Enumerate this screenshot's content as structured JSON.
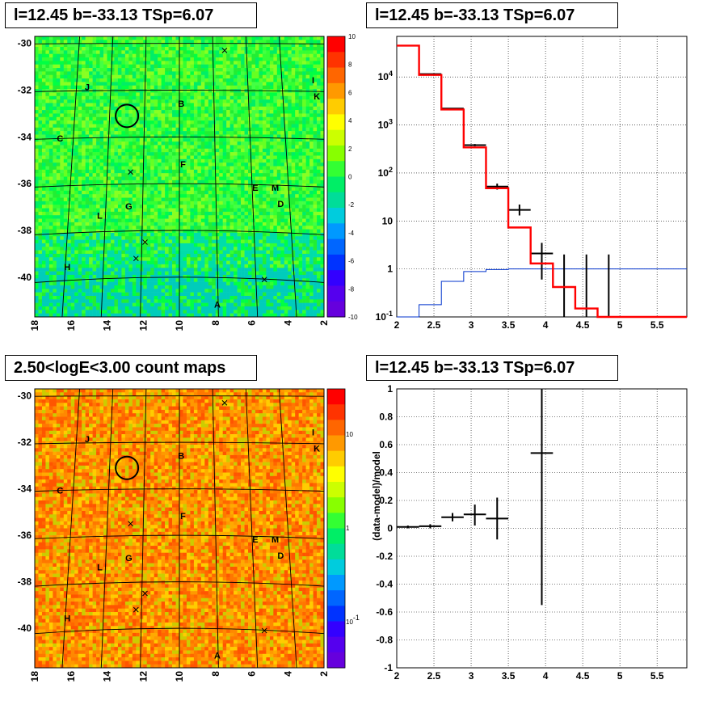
{
  "titles": {
    "map_residual": "l=12.45 b=-33.13 TSp=6.07",
    "spectrum": "l=12.45 b=-33.13 TSp=6.07",
    "count_map": "2.50<logE<3.00 count maps",
    "residual": "l=12.45 b=-33.13 TSp=6.07"
  },
  "colors": {
    "data": "#000000",
    "model": "#ff0000",
    "signal": "#0033cc",
    "grid": "#000000"
  },
  "chart_data": [
    {
      "type": "heatmap",
      "title": "l=12.45 b=-33.13 TSp=6.07",
      "x_ticks": [
        "18",
        "16",
        "14",
        "12",
        "10",
        "8",
        "6",
        "4",
        "2"
      ],
      "y_ticks": [
        "-30",
        "-32",
        "-34",
        "-36",
        "-38",
        "-40"
      ],
      "xlim": [
        18,
        2
      ],
      "ylim": [
        -41.7,
        -29.7
      ],
      "colorbar": {
        "ticks": [
          "10",
          "8",
          "6",
          "4",
          "2",
          "0",
          "-2",
          "-4",
          "-6",
          "-8",
          "-10"
        ],
        "range": [
          -10,
          10
        ]
      },
      "sources": [
        {
          "label": "J",
          "l": 15.1,
          "b": -32.0
        },
        {
          "label": "B",
          "l": 9.9,
          "b": -32.7
        },
        {
          "label": "I",
          "l": 2.6,
          "b": -31.7
        },
        {
          "label": "K",
          "l": 2.4,
          "b": -32.4
        },
        {
          "label": "C",
          "l": 16.6,
          "b": -34.2
        },
        {
          "label": "F",
          "l": 9.8,
          "b": -35.3
        },
        {
          "label": "E",
          "l": 5.8,
          "b": -36.3
        },
        {
          "label": "M",
          "l": 4.7,
          "b": -36.3
        },
        {
          "label": "D",
          "l": 4.4,
          "b": -37.0
        },
        {
          "label": "G",
          "l": 12.8,
          "b": -37.1
        },
        {
          "label": "L",
          "l": 14.4,
          "b": -37.5
        },
        {
          "label": "H",
          "l": 16.2,
          "b": -39.7
        },
        {
          "label": "A",
          "l": 7.9,
          "b": -41.3
        }
      ]
    },
    {
      "type": "line",
      "title": "l=12.45 b=-33.13 TSp=6.07",
      "x_ticks": [
        "2",
        "2.5",
        "3",
        "3.5",
        "4",
        "4.5",
        "5",
        "5.5"
      ],
      "y_ticks": [
        "10^-1",
        "1",
        "10",
        "10^2",
        "10^3",
        "10^4"
      ],
      "xlim": [
        2,
        5.9
      ],
      "ylim": [
        0.1,
        70000
      ],
      "y_scale": "log",
      "bin_edges": [
        2.0,
        2.3,
        2.6,
        2.9,
        3.2,
        3.5,
        3.8,
        4.1,
        4.4,
        4.7,
        5.0,
        5.3,
        5.6,
        5.9
      ],
      "series": [
        {
          "values": [
            45000,
            11000,
            2100,
            340,
            48,
            7.3,
            1.3,
            0.42,
            0.15,
            0.09,
            0.08,
            0.08,
            0.08
          ]
        },
        {
          "values": [
            0.1,
            0.18,
            0.55,
            0.88,
            0.97,
            1.0,
            1.0,
            1.0,
            1.0,
            1.0,
            1.0,
            1.0,
            1.0
          ]
        }
      ],
      "data_points": [
        {
          "x": 2.45,
          "y": 11500,
          "xerr": 0.15,
          "ylo": 11300,
          "yhi": 11700
        },
        {
          "x": 2.75,
          "y": 2200,
          "xerr": 0.15,
          "ylo": 2150,
          "yhi": 2250
        },
        {
          "x": 3.05,
          "y": 380,
          "xerr": 0.15,
          "ylo": 360,
          "yhi": 400
        },
        {
          "x": 3.35,
          "y": 52,
          "xerr": 0.15,
          "ylo": 45,
          "yhi": 60
        },
        {
          "x": 3.65,
          "y": 17,
          "xerr": 0.15,
          "ylo": 13,
          "yhi": 22
        },
        {
          "x": 3.95,
          "y": 2.1,
          "xerr": 0.15,
          "ylo": 0.6,
          "yhi": 3.5
        },
        {
          "x": 4.25,
          "y": 0.1,
          "xerr": 0.0,
          "ylo": 0.1,
          "yhi": 2.0
        },
        {
          "x": 4.55,
          "y": 0.1,
          "xerr": 0.0,
          "ylo": 0.1,
          "yhi": 2.0
        },
        {
          "x": 4.85,
          "y": 0.1,
          "xerr": 0.0,
          "ylo": 0.1,
          "yhi": 2.0
        }
      ]
    },
    {
      "type": "heatmap",
      "title": "2.50<logE<3.00 count maps",
      "x_ticks": [
        "18",
        "16",
        "14",
        "12",
        "10",
        "8",
        "6",
        "4",
        "2"
      ],
      "y_ticks": [
        "-30",
        "-32",
        "-34",
        "-36",
        "-38",
        "-40"
      ],
      "xlim": [
        18,
        2
      ],
      "ylim": [
        -41.7,
        -29.7
      ],
      "colorbar": {
        "ticks": [
          "10",
          "1",
          "10^-1"
        ],
        "scale": "log"
      },
      "sources": [
        {
          "label": "J",
          "l": 15.1,
          "b": -32.0
        },
        {
          "label": "B",
          "l": 9.9,
          "b": -32.7
        },
        {
          "label": "I",
          "l": 2.6,
          "b": -31.7
        },
        {
          "label": "K",
          "l": 2.4,
          "b": -32.4
        },
        {
          "label": "C",
          "l": 16.6,
          "b": -34.2
        },
        {
          "label": "F",
          "l": 9.8,
          "b": -35.3
        },
        {
          "label": "E",
          "l": 5.8,
          "b": -36.3
        },
        {
          "label": "M",
          "l": 4.7,
          "b": -36.3
        },
        {
          "label": "D",
          "l": 4.4,
          "b": -37.0
        },
        {
          "label": "G",
          "l": 12.8,
          "b": -37.1
        },
        {
          "label": "L",
          "l": 14.4,
          "b": -37.5
        },
        {
          "label": "H",
          "l": 16.2,
          "b": -39.7
        },
        {
          "label": "A",
          "l": 7.9,
          "b": -41.3
        }
      ]
    },
    {
      "type": "scatter",
      "title": "l=12.45 b=-33.13 TSp=6.07",
      "ylabel": "(data-model)/model",
      "x_ticks": [
        "2",
        "2.5",
        "3",
        "3.5",
        "4",
        "4.5",
        "5",
        "5.5"
      ],
      "y_ticks": [
        "-1",
        "-0.8",
        "-0.6",
        "-0.4",
        "-0.2",
        "0",
        "0.2",
        "0.4",
        "0.6",
        "0.8",
        "1"
      ],
      "xlim": [
        2,
        5.9
      ],
      "ylim": [
        -1,
        1
      ],
      "points": [
        {
          "x": 2.15,
          "y": 0.01,
          "xerr": 0.15,
          "ylo": 0.0,
          "yhi": 0.02
        },
        {
          "x": 2.45,
          "y": 0.015,
          "xerr": 0.15,
          "ylo": 0.0,
          "yhi": 0.03
        },
        {
          "x": 2.75,
          "y": 0.08,
          "xerr": 0.15,
          "ylo": 0.05,
          "yhi": 0.11
        },
        {
          "x": 3.05,
          "y": 0.1,
          "xerr": 0.15,
          "ylo": 0.02,
          "yhi": 0.17
        },
        {
          "x": 3.35,
          "y": 0.07,
          "xerr": 0.15,
          "ylo": -0.08,
          "yhi": 0.22
        },
        {
          "x": 3.95,
          "y": 0.54,
          "xerr": 0.15,
          "ylo": -0.55,
          "yhi": 1.0
        }
      ]
    }
  ]
}
